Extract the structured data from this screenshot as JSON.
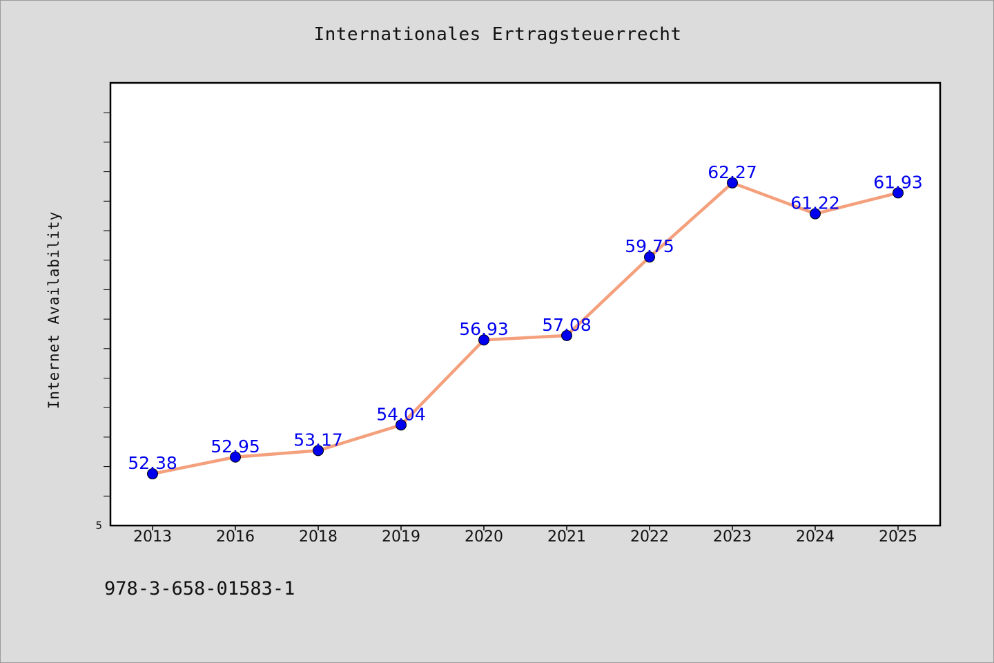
{
  "chart_data": {
    "type": "line",
    "title": "Internationales Ertragsteuerrecht",
    "xlabel": "",
    "ylabel": "Internet Availability",
    "categories": [
      "2013",
      "2016",
      "2018",
      "2019",
      "2020",
      "2021",
      "2022",
      "2023",
      "2024",
      "2025"
    ],
    "series": [
      {
        "values": [
          52.38,
          52.95,
          53.17,
          54.04,
          56.93,
          57.08,
          59.75,
          62.27,
          61.22,
          61.93
        ],
        "labels": [
          "52.38",
          "52.95",
          "53.17",
          "54.04",
          "56.93",
          "57.08",
          "59.75",
          "62.27",
          "61.22",
          "61.93"
        ],
        "line_color": "#f4a07c",
        "marker_color": "#0000ee",
        "label_color": "#0000ee"
      }
    ],
    "ylim": [
      50.62,
      65.67
    ],
    "y_tick_label": "5",
    "grid": false,
    "legend": "none"
  },
  "footer": {
    "code": "978-3-658-01583-1"
  }
}
